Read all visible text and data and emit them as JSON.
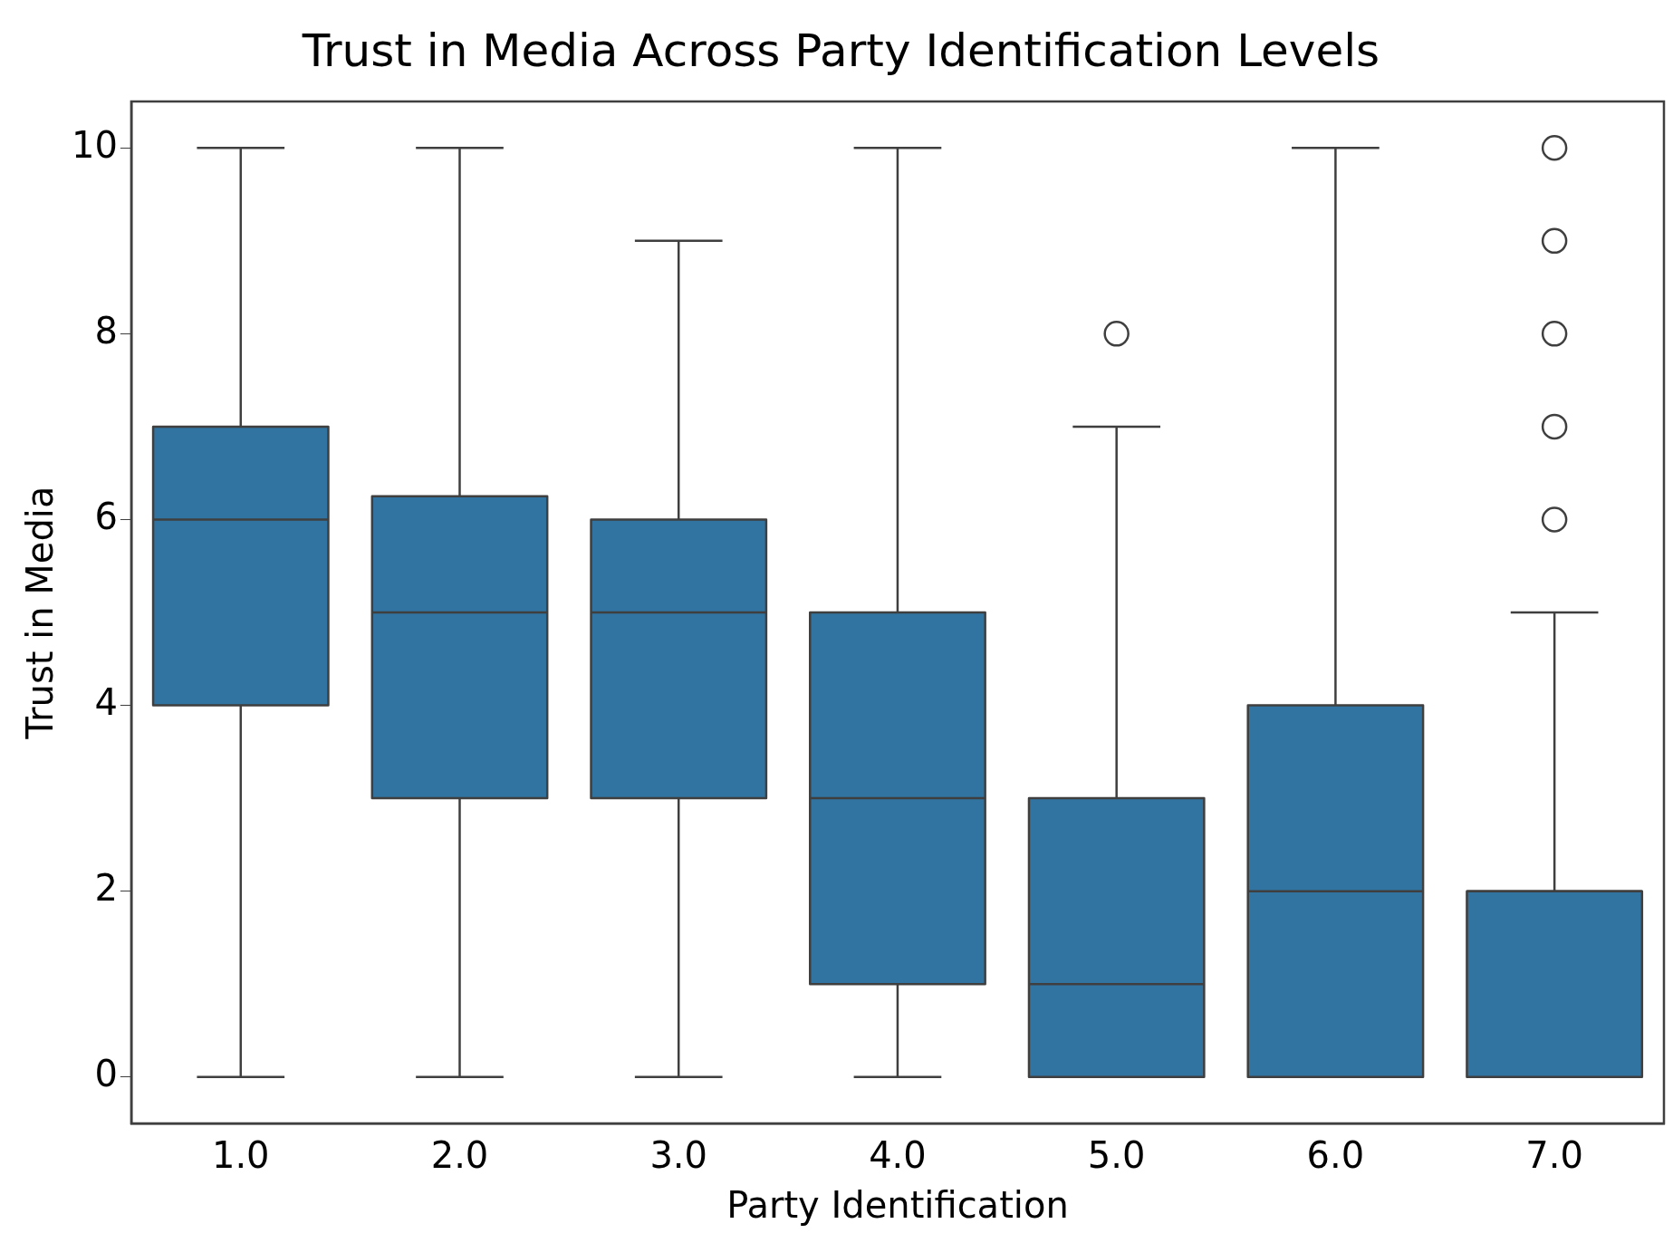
{
  "chart_data": {
    "type": "box",
    "title": "Trust in Media Across Party Identification Levels",
    "xlabel": "Party Identification",
    "ylabel": "Trust in Media",
    "categories": [
      "1.0",
      "2.0",
      "3.0",
      "4.0",
      "5.0",
      "6.0",
      "7.0"
    ],
    "color": "#3274a1",
    "boxes": [
      {
        "low": 0,
        "q1": 4,
        "median": 6,
        "q3": 7,
        "high": 10
      },
      {
        "low": 0,
        "q1": 3,
        "median": 5,
        "q3": 6.25,
        "high": 10
      },
      {
        "low": 0,
        "q1": 3,
        "median": 5,
        "q3": 6,
        "high": 9
      },
      {
        "low": 0,
        "q1": 1,
        "median": 3,
        "q3": 5,
        "high": 10
      },
      {
        "low": 0,
        "q1": 0,
        "median": 1,
        "q3": 3,
        "high": 7,
        "outliers": [
          8
        ]
      },
      {
        "low": 0,
        "q1": 0,
        "median": 2,
        "q3": 4,
        "high": 10
      },
      {
        "low": 0,
        "q1": 0,
        "median": 2,
        "q3": 2,
        "high": 5,
        "outliers": [
          6,
          7,
          8,
          9,
          10
        ]
      }
    ],
    "ylim": [
      -0.5,
      10.5
    ],
    "yticks": [
      0,
      2,
      4,
      6,
      8,
      10
    ],
    "grid": false,
    "legend": false
  }
}
